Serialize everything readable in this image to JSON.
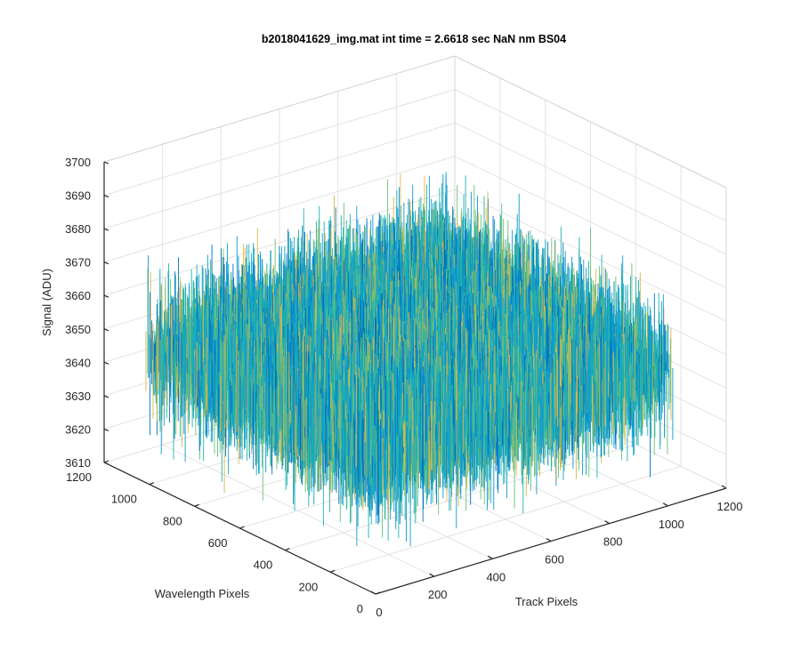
{
  "chart_data": {
    "type": "surface-3d",
    "title": "b2018041629_img.mat int time = 2.6618 sec  NaN nm BS04",
    "xlabel": "Track Pixels",
    "ylabel": "Wavelength Pixels",
    "zlabel": "Signal (ADU)",
    "xlim": [
      0,
      1200
    ],
    "ylim": [
      0,
      1200
    ],
    "zlim": [
      3610,
      3700
    ],
    "x_ticks": [
      0,
      200,
      400,
      600,
      800,
      1000,
      1200
    ],
    "y_ticks": [
      0,
      200,
      400,
      600,
      800,
      1000,
      1200
    ],
    "z_ticks": [
      3610,
      3620,
      3630,
      3640,
      3650,
      3660,
      3670,
      3680,
      3690,
      3700
    ],
    "data_extent": {
      "x": [
        0,
        1024
      ],
      "y": [
        0,
        1024
      ]
    },
    "signal_mean": 3650,
    "signal_range": [
      3618,
      3690
    ],
    "grid": true,
    "colormap": [
      "#0072bd",
      "#0f9bd0",
      "#1fb0b0",
      "#6cc07a",
      "#d8b84a"
    ]
  }
}
